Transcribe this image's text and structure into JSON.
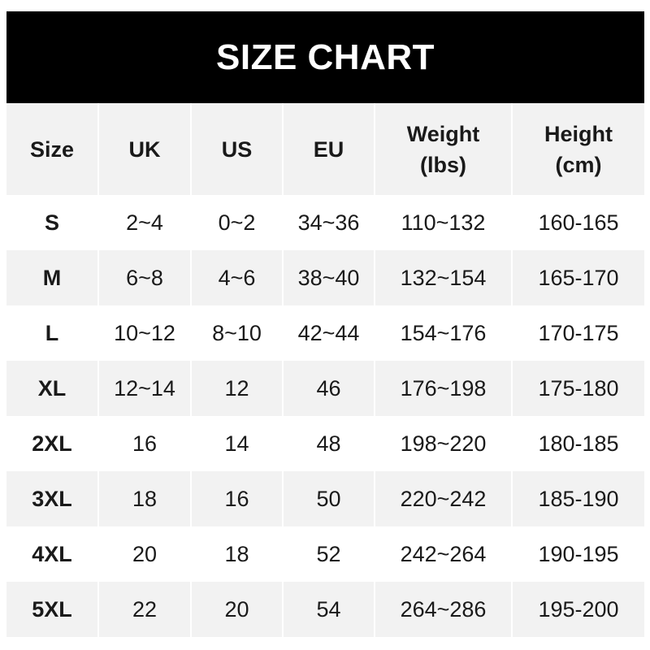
{
  "title": "SIZE CHART",
  "headers": [
    {
      "line1": "Size",
      "line2": ""
    },
    {
      "line1": "UK",
      "line2": ""
    },
    {
      "line1": "US",
      "line2": ""
    },
    {
      "line1": "EU",
      "line2": ""
    },
    {
      "line1": "Weight",
      "line2": "(lbs)"
    },
    {
      "line1": "Height",
      "line2": "(cm)"
    }
  ],
  "rows": [
    [
      "S",
      "2~4",
      "0~2",
      "34~36",
      "110~132",
      "160-165"
    ],
    [
      "M",
      "6~8",
      "4~6",
      "38~40",
      "132~154",
      "165-170"
    ],
    [
      "L",
      "10~12",
      "8~10",
      "42~44",
      "154~176",
      "170-175"
    ],
    [
      "XL",
      "12~14",
      "12",
      "46",
      "176~198",
      "175-180"
    ],
    [
      "2XL",
      "16",
      "14",
      "48",
      "198~220",
      "180-185"
    ],
    [
      "3XL",
      "18",
      "16",
      "50",
      "220~242",
      "185-190"
    ],
    [
      "4XL",
      "20",
      "18",
      "52",
      "242~264",
      "190-195"
    ],
    [
      "5XL",
      "22",
      "20",
      "54",
      "264~286",
      "195-200"
    ]
  ],
  "colors": {
    "title_bg": "#000000",
    "stripe": "#f2f2f2",
    "text": "#1a1a1a"
  }
}
